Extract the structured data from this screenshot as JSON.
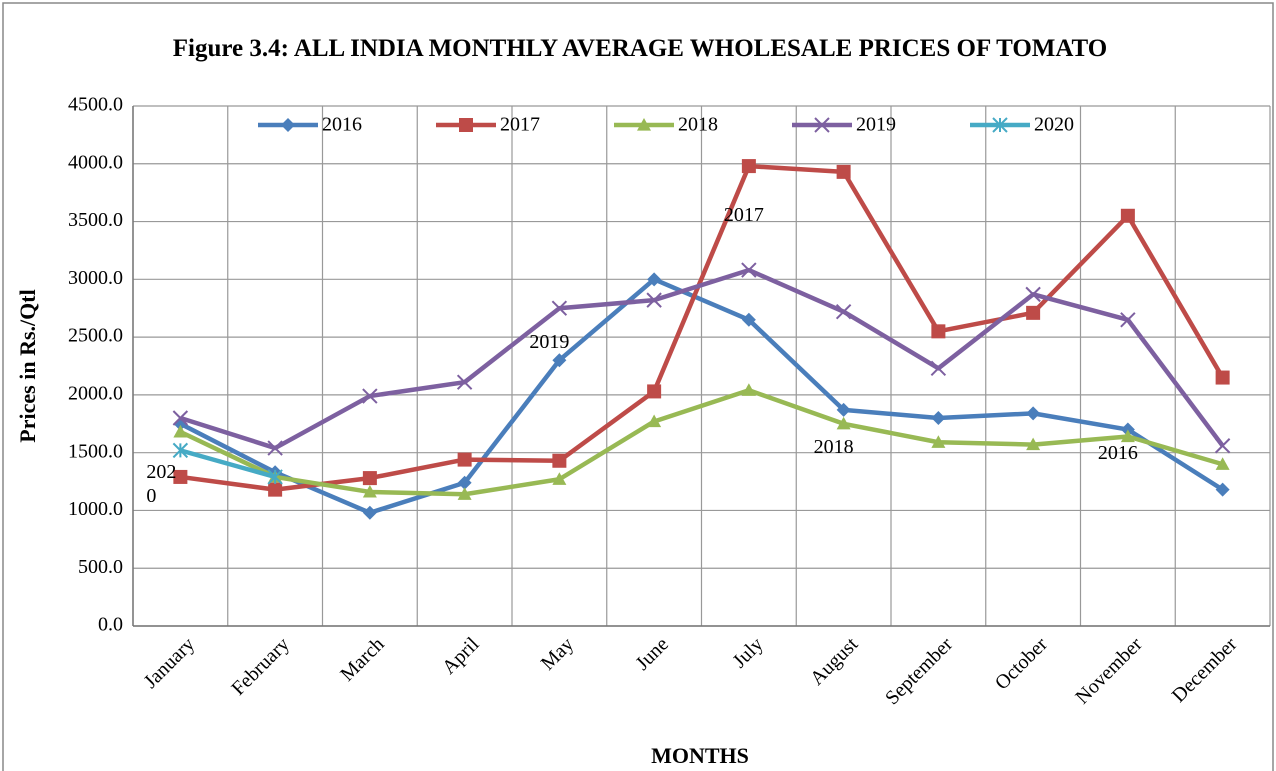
{
  "chart_data": {
    "type": "line",
    "title": "Figure 3.4: ALL INDIA MONTHLY AVERAGE WHOLESALE PRICES OF TOMATO",
    "x_label": "MONTHS",
    "y_label": "Prices in Rs./Qtl",
    "categories": [
      "January",
      "February",
      "March",
      "April",
      "May",
      "June",
      "July",
      "August",
      "September",
      "October",
      "November",
      "December"
    ],
    "series": [
      {
        "name": "2016",
        "color": "#4a7ebb",
        "marker": "diamond",
        "values": [
          1750,
          1330,
          980,
          1240,
          2300,
          3000,
          2650,
          1870,
          1800,
          1840,
          1700,
          1180
        ]
      },
      {
        "name": "2017",
        "color": "#be4b48",
        "marker": "square",
        "values": [
          1290,
          1180,
          1280,
          1440,
          1430,
          2030,
          3980,
          3930,
          2550,
          2710,
          3550,
          2150
        ]
      },
      {
        "name": "2018",
        "color": "#98b954",
        "marker": "triangle",
        "values": [
          1680,
          1290,
          1160,
          1140,
          1270,
          1770,
          2040,
          1750,
          1590,
          1570,
          1640,
          1400
        ]
      },
      {
        "name": "2019",
        "color": "#7d60a0",
        "marker": "x",
        "values": [
          1800,
          1540,
          1990,
          2110,
          2750,
          2820,
          3080,
          2720,
          2230,
          2870,
          2650,
          1560
        ]
      },
      {
        "name": "2020",
        "color": "#46aac5",
        "marker": "asterisk",
        "values": [
          1520,
          1290,
          null,
          null,
          null,
          null,
          null,
          null,
          null,
          null,
          null,
          null
        ]
      }
    ],
    "ylim": [
      0,
      4500
    ],
    "yticks": [
      {
        "value": 0,
        "label": "0.0"
      },
      {
        "value": 500,
        "label": "500.0"
      },
      {
        "value": 1000,
        "label": "1000.0"
      },
      {
        "value": 1500,
        "label": "1500.0"
      },
      {
        "value": 2000,
        "label": "2000.0"
      },
      {
        "value": 2500,
        "label": "2500.0"
      },
      {
        "value": 3000,
        "label": "3000.0"
      },
      {
        "value": 3500,
        "label": "3500.0"
      },
      {
        "value": 4000,
        "label": "4000.0"
      },
      {
        "value": 4500,
        "label": "4500.0"
      }
    ],
    "grid": true,
    "legend": "top",
    "annotations": [
      {
        "text": "2017",
        "category": 6
      },
      {
        "text": "2019",
        "category": 4
      },
      {
        "text": "2018",
        "category": 7
      },
      {
        "text": "2016",
        "category": 10
      },
      {
        "text": "2020",
        "category": 0
      }
    ]
  }
}
